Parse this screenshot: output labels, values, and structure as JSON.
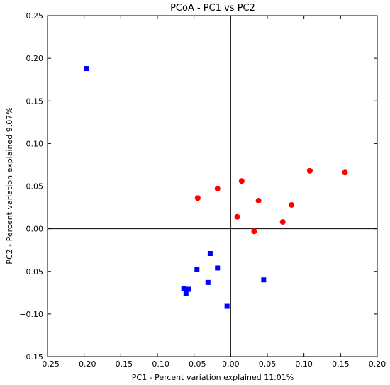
{
  "chart_data": {
    "type": "scatter",
    "title": "PCoA - PC1 vs PC2",
    "xlabel": "PC1 - Percent variation explained 11.01%",
    "ylabel": "PC2 - Percent variation explained 9.07%",
    "xlim": [
      -0.25,
      0.2
    ],
    "ylim": [
      -0.15,
      0.25
    ],
    "xticks": [
      -0.25,
      -0.2,
      -0.15,
      -0.1,
      -0.05,
      0.0,
      0.05,
      0.1,
      0.15,
      0.2
    ],
    "yticks": [
      -0.15,
      -0.1,
      -0.05,
      0.0,
      0.05,
      0.1,
      0.15,
      0.2,
      0.25
    ],
    "xtick_labels": [
      "−0.25",
      "−0.20",
      "−0.15",
      "−0.10",
      "−0.05",
      "0.00",
      "0.05",
      "0.10",
      "0.15",
      "0.20"
    ],
    "ytick_labels": [
      "−0.15",
      "−0.10",
      "−0.05",
      "0.00",
      "0.05",
      "0.10",
      "0.15",
      "0.20",
      "0.25"
    ],
    "zero_lines": true,
    "grid": false,
    "series": [
      {
        "color": "#0000ff",
        "marker": "square",
        "points": [
          [
            -0.197,
            0.188
          ],
          [
            -0.028,
            -0.029
          ],
          [
            -0.046,
            -0.048
          ],
          [
            -0.018,
            -0.046
          ],
          [
            -0.031,
            -0.063
          ],
          [
            -0.064,
            -0.07
          ],
          [
            -0.057,
            -0.071
          ],
          [
            -0.061,
            -0.076
          ],
          [
            0.045,
            -0.06
          ],
          [
            -0.005,
            -0.091
          ]
        ]
      },
      {
        "color": "#ff0000",
        "marker": "circle",
        "points": [
          [
            -0.045,
            0.036
          ],
          [
            -0.018,
            0.047
          ],
          [
            0.015,
            0.056
          ],
          [
            0.009,
            0.014
          ],
          [
            0.038,
            0.033
          ],
          [
            0.032,
            -0.003
          ],
          [
            0.071,
            0.008
          ],
          [
            0.083,
            0.028
          ],
          [
            0.108,
            0.068
          ],
          [
            0.156,
            0.066
          ]
        ]
      }
    ]
  }
}
